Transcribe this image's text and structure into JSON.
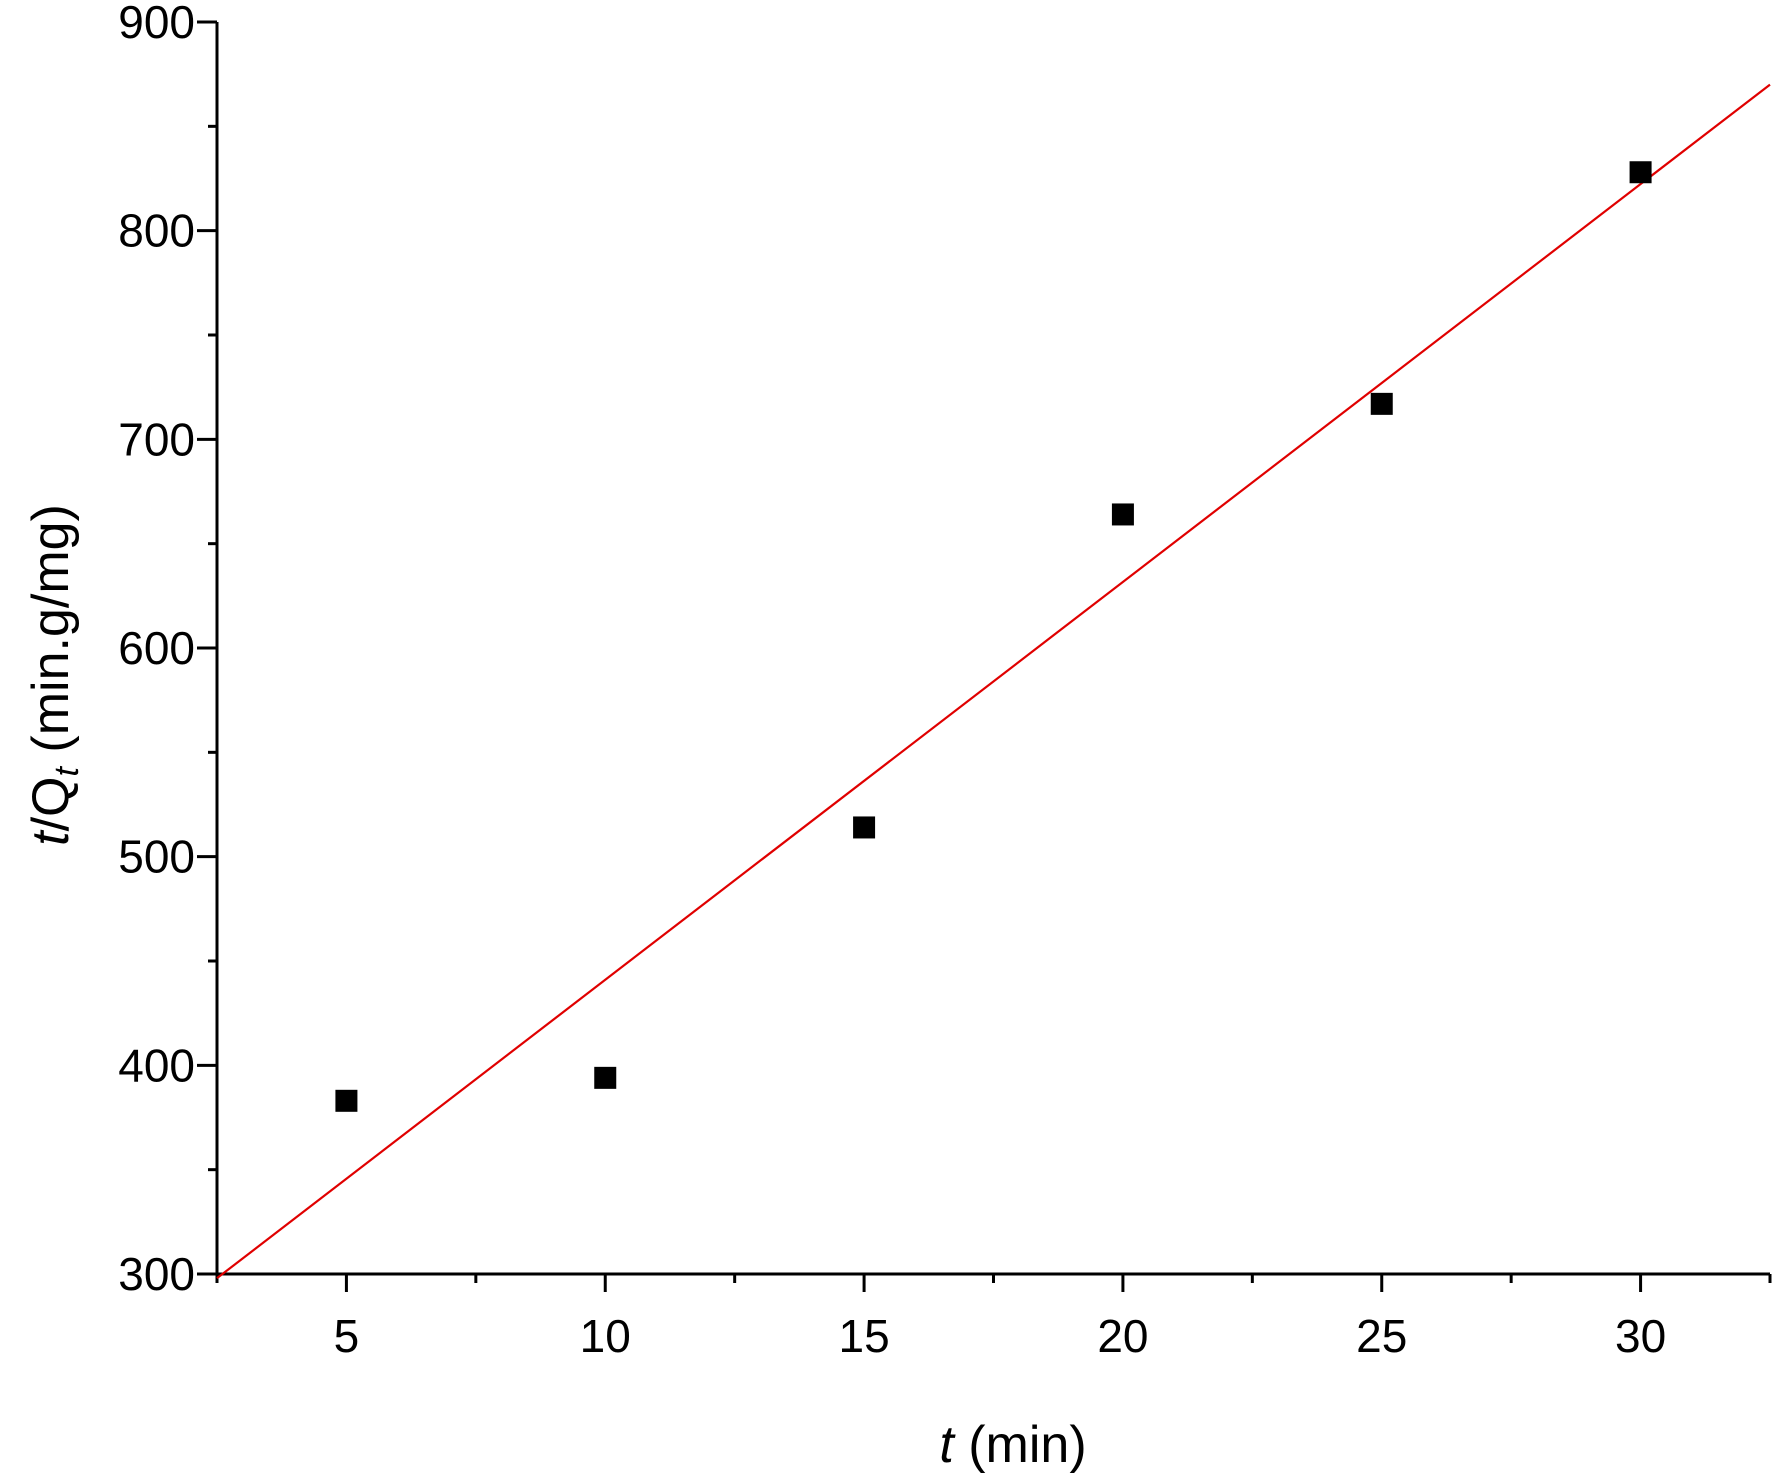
{
  "chart_data": {
    "type": "scatter",
    "title": "",
    "xlabel": "t (min)",
    "xlabel_parts": {
      "var": "t",
      "unit": " (min)"
    },
    "ylabel": "t/Qt (min.g/mg)",
    "ylabel_parts": {
      "var": "t",
      "slash": "/Q",
      "sub": "t",
      "unit": " (min.g/mg)"
    },
    "xlim": [
      2.5,
      32.5
    ],
    "ylim": [
      300,
      900
    ],
    "xticks": [
      5,
      10,
      15,
      20,
      25,
      30
    ],
    "yticks": [
      300,
      400,
      500,
      600,
      700,
      800,
      900
    ],
    "x_minor_step": 2.5,
    "y_minor_step": 50,
    "grid": false,
    "legend": "none",
    "series": [
      {
        "marker": "square",
        "color": "#000000",
        "x": [
          5,
          10,
          15,
          20,
          25,
          30
        ],
        "y": [
          383,
          394,
          514,
          664,
          717,
          828
        ]
      }
    ],
    "fit_line": {
      "color": "#e00000",
      "points": [
        [
          2.5,
          298
        ],
        [
          32.5,
          870
        ]
      ]
    }
  }
}
